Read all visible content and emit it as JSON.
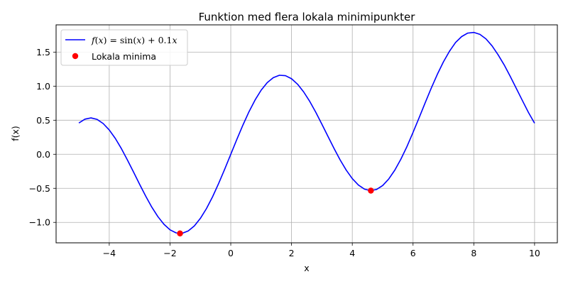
{
  "chart_data": {
    "type": "line",
    "title": "Funktion med flera lokala minimipunkter",
    "xlabel": "x",
    "ylabel": "f(x)",
    "xlim": [
      -5.75,
      10.75
    ],
    "ylim": [
      -1.3,
      1.9
    ],
    "xticks": [
      -4,
      -2,
      0,
      2,
      4,
      6,
      8,
      10
    ],
    "xtick_labels": [
      "−4",
      "−2",
      "0",
      "2",
      "4",
      "6",
      "8",
      "10"
    ],
    "yticks": [
      -1.0,
      -0.5,
      0.0,
      0.5,
      1.0,
      1.5
    ],
    "ytick_labels": [
      "−1.0",
      "−0.5",
      "0.0",
      "0.5",
      "1.0",
      "1.5"
    ],
    "grid": true,
    "legend_position": "top-left",
    "series": [
      {
        "name": "f(x) = sin(x) + 0.1x",
        "kind": "line",
        "color": "#0000ff",
        "x_range": [
          -5,
          10
        ],
        "x": [
          -5.0,
          -4.8,
          -4.6,
          -4.4,
          -4.2,
          -4.0,
          -3.8,
          -3.6,
          -3.4,
          -3.2,
          -3.0,
          -2.8,
          -2.6,
          -2.4,
          -2.2,
          -2.0,
          -1.8,
          -1.6,
          -1.4,
          -1.2,
          -1.0,
          -0.8,
          -0.6,
          -0.4,
          -0.2,
          0.0,
          0.2,
          0.4,
          0.6,
          0.8,
          1.0,
          1.2,
          1.4,
          1.6,
          1.8,
          2.0,
          2.2,
          2.4,
          2.6,
          2.8,
          3.0,
          3.2,
          3.4,
          3.6,
          3.8,
          4.0,
          4.2,
          4.4,
          4.6,
          4.8,
          5.0,
          5.2,
          5.4,
          5.6,
          5.8,
          6.0,
          6.2,
          6.4,
          6.6,
          6.8,
          7.0,
          7.2,
          7.4,
          7.6,
          7.8,
          8.0,
          8.2,
          8.4,
          8.6,
          8.8,
          9.0,
          9.2,
          9.4,
          9.6,
          9.8,
          10.0
        ],
        "y": [
          0.459,
          0.516,
          0.534,
          0.512,
          0.451,
          0.357,
          0.232,
          0.083,
          -0.085,
          -0.262,
          -0.441,
          -0.615,
          -0.776,
          -0.915,
          -1.028,
          -1.109,
          -1.154,
          -1.16,
          -1.125,
          -1.052,
          -0.941,
          -0.797,
          -0.625,
          -0.429,
          -0.219,
          0.0,
          0.219,
          0.429,
          0.625,
          0.797,
          0.941,
          1.052,
          1.125,
          1.16,
          1.154,
          1.109,
          1.028,
          0.915,
          0.776,
          0.615,
          0.441,
          0.262,
          0.085,
          -0.083,
          -0.232,
          -0.357,
          -0.451,
          -0.512,
          -0.534,
          -0.516,
          -0.459,
          -0.363,
          -0.233,
          -0.071,
          0.114,
          0.321,
          0.536,
          0.757,
          0.972,
          1.174,
          1.357,
          1.513,
          1.641,
          1.728,
          1.779,
          1.789,
          1.761,
          1.694,
          1.592,
          1.46,
          1.312,
          1.143,
          0.966,
          0.788,
          0.613,
          0.456
        ]
      },
      {
        "name": "Lokala minima",
        "kind": "scatter",
        "color": "#ff0000",
        "x": [
          -1.671,
          4.612
        ],
        "y": [
          -1.162,
          -0.534
        ]
      }
    ]
  }
}
